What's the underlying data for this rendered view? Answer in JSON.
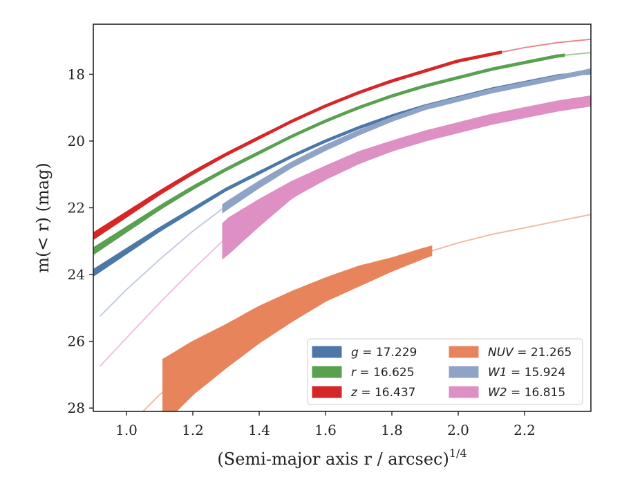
{
  "chart_data": {
    "type": "line",
    "title": "",
    "xlabel": "(Semi-major axis r / arcsec)",
    "xlabel_exponent": "1/4",
    "ylabel": "m(< r) (mag)",
    "xlim": [
      0.9,
      2.4
    ],
    "ylim": [
      28.1,
      16.5
    ],
    "y_inverted": true,
    "xticks": [
      "1.0",
      "1.2",
      "1.4",
      "1.6",
      "1.8",
      "2.0",
      "2.2"
    ],
    "xtick_values": [
      1.0,
      1.2,
      1.4,
      1.6,
      1.8,
      2.0,
      2.2
    ],
    "yticks": [
      "18",
      "20",
      "22",
      "24",
      "26",
      "28"
    ],
    "ytick_values": [
      18,
      20,
      22,
      24,
      26,
      28
    ],
    "grid": false,
    "legend_position": "lower-right",
    "series": [
      {
        "name": "g = 17.229",
        "symbol": "g",
        "value": "17.229",
        "color": "#4c78a8",
        "x": [
          0.9,
          1.0,
          1.1,
          1.2,
          1.3,
          1.4,
          1.5,
          1.6,
          1.7,
          1.8,
          1.9,
          2.0,
          2.1,
          2.2,
          2.3,
          2.4
        ],
        "y": [
          23.95,
          23.3,
          22.65,
          22.05,
          21.45,
          20.95,
          20.45,
          20.0,
          19.6,
          19.25,
          18.95,
          18.7,
          18.45,
          18.25,
          18.05,
          17.95
        ],
        "band": [
          0.1,
          0.08,
          0.06,
          0.05,
          0.04,
          0.04,
          0.03,
          0.03,
          0.03,
          0.03,
          0.03,
          0.03,
          0.03,
          0.03,
          0.03,
          0.03
        ],
        "solid_range": [
          0.9,
          2.4
        ]
      },
      {
        "name": "r = 16.625",
        "symbol": "r",
        "value": "16.625",
        "color": "#59a14f",
        "x": [
          0.9,
          1.0,
          1.1,
          1.2,
          1.3,
          1.4,
          1.5,
          1.6,
          1.7,
          1.8,
          1.9,
          2.0,
          2.1,
          2.2,
          2.3,
          2.4
        ],
        "y": [
          23.3,
          22.65,
          22.0,
          21.4,
          20.85,
          20.35,
          19.85,
          19.4,
          19.0,
          18.65,
          18.35,
          18.1,
          17.85,
          17.65,
          17.45,
          17.35
        ],
        "band": [
          0.1,
          0.08,
          0.06,
          0.05,
          0.04,
          0.04,
          0.03,
          0.03,
          0.03,
          0.03,
          0.03,
          0.03,
          0.03,
          0.03,
          0.03,
          0.03
        ],
        "solid_range": [
          0.9,
          2.32
        ]
      },
      {
        "name": "z = 16.437",
        "symbol": "z",
        "value": "16.437",
        "color": "#d62728",
        "x": [
          0.9,
          1.0,
          1.1,
          1.2,
          1.3,
          1.4,
          1.5,
          1.6,
          1.7,
          1.8,
          1.9,
          2.0,
          2.1,
          2.2,
          2.3,
          2.4
        ],
        "y": [
          22.85,
          22.2,
          21.55,
          20.95,
          20.4,
          19.9,
          19.4,
          18.95,
          18.55,
          18.2,
          17.9,
          17.6,
          17.4,
          17.2,
          17.05,
          16.95
        ],
        "band": [
          0.1,
          0.08,
          0.06,
          0.05,
          0.04,
          0.04,
          0.03,
          0.03,
          0.03,
          0.03,
          0.03,
          0.03,
          0.03,
          0.03,
          0.03,
          0.03
        ],
        "solid_range": [
          0.9,
          2.13
        ]
      },
      {
        "name": "NUV = 21.265",
        "symbol": "NUV",
        "value": "21.265",
        "color": "#e8845c",
        "x": [
          1.05,
          1.1,
          1.2,
          1.3,
          1.4,
          1.5,
          1.6,
          1.7,
          1.8,
          1.9,
          2.0,
          2.1,
          2.2,
          2.3,
          2.4
        ],
        "y": [
          28.1,
          27.6,
          26.8,
          26.15,
          25.5,
          24.95,
          24.45,
          24.05,
          23.7,
          23.35,
          23.05,
          22.8,
          22.6,
          22.4,
          22.2
        ],
        "band": [
          0.05,
          1.0,
          0.8,
          0.65,
          0.55,
          0.45,
          0.35,
          0.3,
          0.2,
          0.15,
          0.1,
          0.1,
          0.1,
          0.1,
          0.1
        ],
        "solid_range": [
          1.11,
          1.92
        ]
      },
      {
        "name": "W1 = 15.924",
        "symbol": "W1",
        "value": "15.924",
        "color": "#8fa3c6",
        "x": [
          0.92,
          1.0,
          1.1,
          1.2,
          1.3,
          1.4,
          1.5,
          1.6,
          1.7,
          1.8,
          1.9,
          2.0,
          2.1,
          2.2,
          2.3,
          2.4
        ],
        "y": [
          25.25,
          24.45,
          23.55,
          22.7,
          21.95,
          21.3,
          20.7,
          20.2,
          19.75,
          19.35,
          19.0,
          18.75,
          18.5,
          18.3,
          18.1,
          17.9
        ],
        "band": [
          0.1,
          0.1,
          0.1,
          0.1,
          0.12,
          0.1,
          0.08,
          0.08,
          0.07,
          0.06,
          0.06,
          0.06,
          0.06,
          0.06,
          0.06,
          0.06
        ],
        "solid_range": [
          1.29,
          2.4
        ]
      },
      {
        "name": "W2 = 16.815",
        "symbol": "W2",
        "value": "16.815",
        "color": "#de8fc3",
        "x": [
          0.92,
          1.0,
          1.1,
          1.2,
          1.3,
          1.4,
          1.5,
          1.6,
          1.7,
          1.8,
          1.9,
          2.0,
          2.1,
          2.2,
          2.3,
          2.4
        ],
        "y": [
          26.75,
          25.9,
          24.85,
          23.85,
          22.9,
          22.15,
          21.45,
          20.95,
          20.5,
          20.15,
          19.85,
          19.6,
          19.35,
          19.15,
          18.95,
          18.8
        ],
        "band": [
          0.2,
          0.25,
          0.3,
          0.3,
          0.55,
          0.4,
          0.25,
          0.2,
          0.18,
          0.15,
          0.15,
          0.15,
          0.15,
          0.15,
          0.15,
          0.15
        ],
        "solid_range": [
          1.29,
          2.4
        ]
      }
    ],
    "legend_order": [
      0,
      1,
      2,
      3,
      4,
      5
    ]
  }
}
